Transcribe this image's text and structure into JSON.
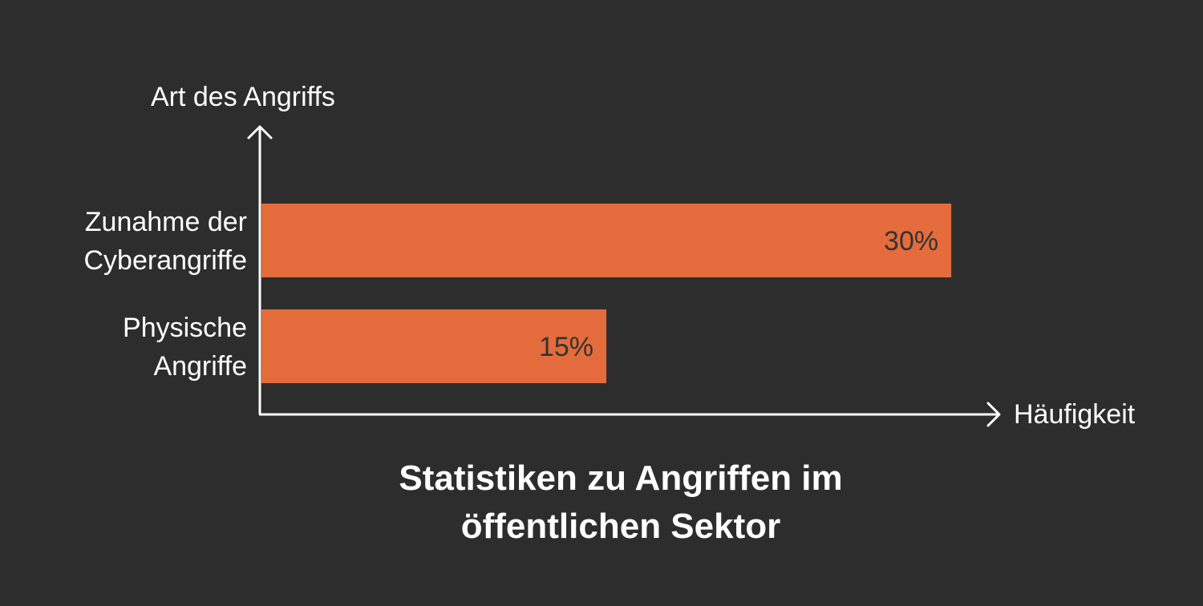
{
  "chart_data": {
    "type": "bar",
    "orientation": "horizontal",
    "title_lines": [
      "Statistiken zu Angriffen im",
      "öffentlichen Sektor"
    ],
    "ylabel": "Art des Angriffs",
    "xlabel": "Häufigkeit",
    "categories": [
      [
        "Zunahme der",
        "Cyberangriffe"
      ],
      [
        "Physische",
        "Angriffe"
      ]
    ],
    "values": [
      30,
      15
    ],
    "value_labels": [
      "30%",
      "15%"
    ],
    "bar_color": "#e46c3c",
    "axis_color": "#ffffff",
    "grid": false,
    "legend": "none"
  }
}
